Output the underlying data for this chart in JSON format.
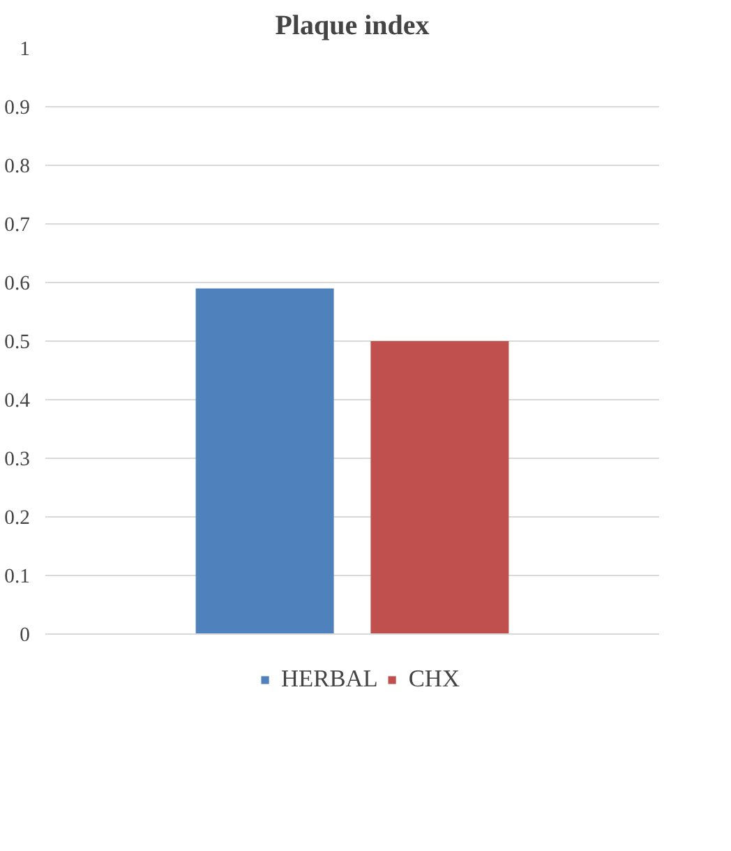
{
  "chart_data": {
    "type": "bar",
    "title": "Plaque index",
    "categories": [
      null
    ],
    "series": [
      {
        "name": "HERBAL",
        "color": "#4f81bd",
        "values": [
          0.59
        ]
      },
      {
        "name": "CHX",
        "color": "#c0504d",
        "values": [
          0.5
        ]
      }
    ],
    "ylim": [
      0,
      1
    ],
    "yticks": [
      0,
      0.1,
      0.2,
      0.3,
      0.4,
      0.5,
      0.6,
      0.7,
      0.8,
      0.9,
      1
    ],
    "grid": "y",
    "legend": "bottom"
  }
}
